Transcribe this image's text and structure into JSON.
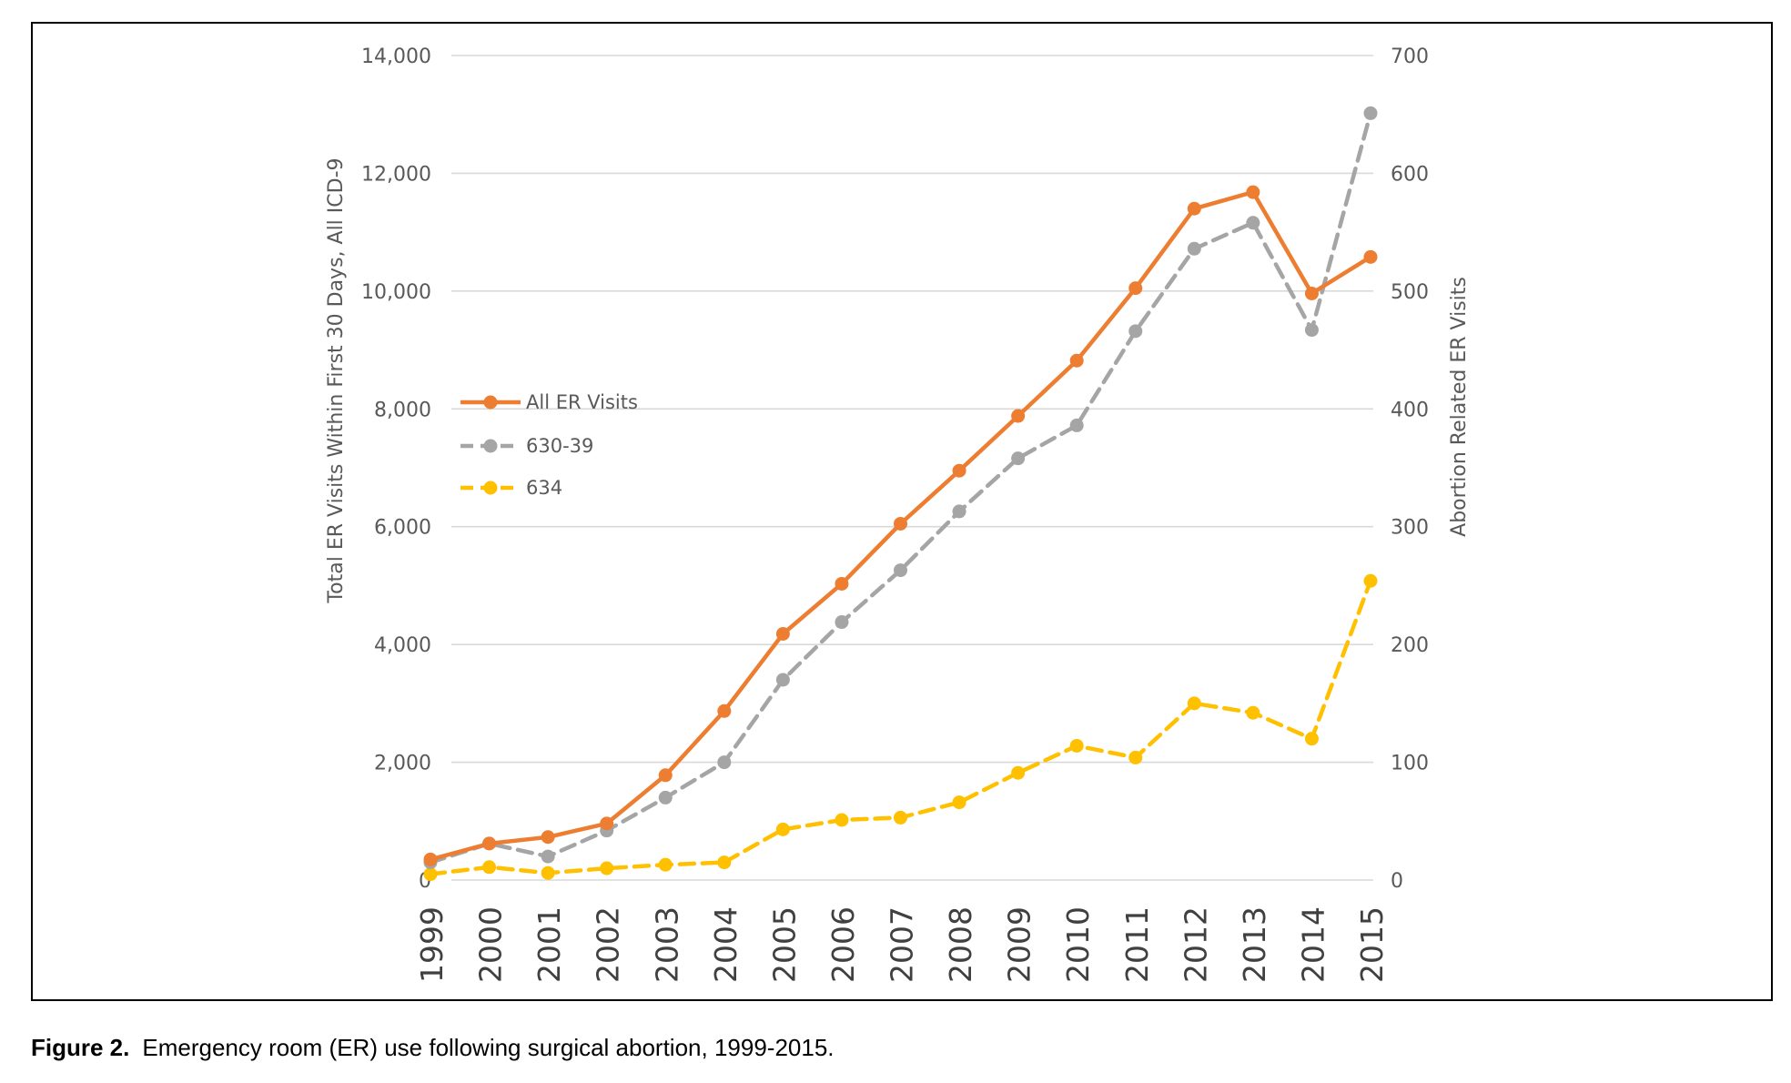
{
  "colors": {
    "all_er": "#ED7D31",
    "c630_39": "#A5A5A5",
    "c634": "#FFC000",
    "grid": "#D9D9D9",
    "tick_text": "#595959",
    "axis_title": "#595959",
    "year_text": "#404040"
  },
  "caption": {
    "label": "Figure 2.",
    "text": "Emergency room (ER) use following surgical abortion, 1999-2015."
  },
  "chart_data": {
    "type": "line",
    "title": "",
    "categories": [
      "1999",
      "2000",
      "2001",
      "2002",
      "2003",
      "2004",
      "2005",
      "2006",
      "2007",
      "2008",
      "2009",
      "2010",
      "2011",
      "2012",
      "2013",
      "2014",
      "2015"
    ],
    "ylabel": "Total ER Visits Within First 30 Days, All ICD-9",
    "ylabel_right": "Abortion Related ER Visits",
    "ylim": [
      0,
      14000
    ],
    "ylim_right": [
      0,
      700
    ],
    "yticks": [
      "0",
      "2,000",
      "4,000",
      "6,000",
      "8,000",
      "10,000",
      "12,000",
      "14,000"
    ],
    "yticks_right": [
      "0",
      "100",
      "200",
      "300",
      "400",
      "500",
      "600",
      "700"
    ],
    "grid": true,
    "legend_position": "center-left",
    "series": [
      {
        "name": "All ER Visits",
        "axis": "left",
        "style": "solid",
        "values": [
          350,
          620,
          730,
          960,
          1780,
          2870,
          4180,
          5030,
          6050,
          6950,
          7880,
          8820,
          10050,
          11400,
          11680,
          9960,
          10580
        ]
      },
      {
        "name": "630-39",
        "axis": "right",
        "style": "dashed",
        "values": [
          15,
          31,
          20,
          42,
          70,
          100,
          170,
          219,
          263,
          313,
          358,
          386,
          466,
          536,
          558,
          467,
          651
        ]
      },
      {
        "name": "634",
        "axis": "right",
        "style": "dashed",
        "values": [
          5,
          11,
          6,
          10,
          13,
          15,
          43,
          51,
          53,
          66,
          91,
          114,
          104,
          150,
          142,
          120,
          254
        ]
      }
    ]
  }
}
